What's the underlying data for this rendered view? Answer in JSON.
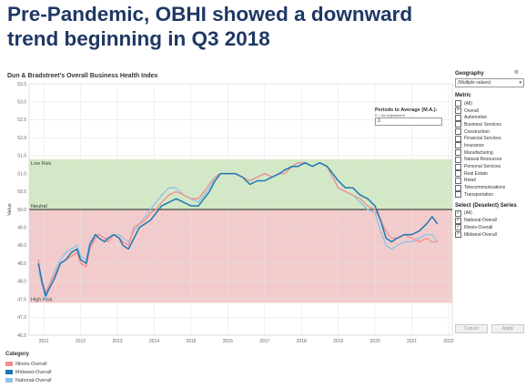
{
  "headline": "Pre-Pandemic, OBHI showed a downward trend beginning in Q3 2018",
  "chart_data": {
    "type": "line",
    "title": "Dun & Bradstreet's Overall Business Health Index",
    "xlabel": "",
    "ylabel": "Value",
    "xlim": [
      2010.6,
      2022.1
    ],
    "ylim": [
      46.5,
      53.5
    ],
    "y_ticks": [
      46.5,
      47.0,
      47.5,
      48.0,
      48.5,
      49.0,
      49.5,
      50.0,
      50.5,
      51.0,
      51.5,
      52.0,
      52.5,
      53.0,
      53.5
    ],
    "x_ticks": [
      2011,
      2012,
      2013,
      2014,
      2015,
      2016,
      2017,
      2018,
      2019,
      2020,
      2021,
      2022
    ],
    "grid": true,
    "bands": [
      {
        "label": "Low Risk",
        "from": 50.0,
        "to": 51.4,
        "color": "#d3e8c6"
      },
      {
        "label": "High Risk",
        "from": 47.4,
        "to": 50.0,
        "color": "#f2cccc"
      }
    ],
    "reference_line": {
      "label": "Neutral",
      "value": 50.0
    },
    "series": [
      {
        "name": "Illinois-Overall",
        "color": "#f28e8e",
        "x": [
          2010.85,
          2010.95,
          2011.05,
          2011.15,
          2011.3,
          2011.45,
          2011.6,
          2011.75,
          2011.9,
          2012.0,
          2012.15,
          2012.25,
          2012.4,
          2012.5,
          2012.65,
          2012.75,
          2012.9,
          2013.05,
          2013.15,
          2013.3,
          2013.45,
          2013.6,
          2013.75,
          2013.9,
          2014.05,
          2014.2,
          2014.4,
          2014.6,
          2014.8,
          2015.0,
          2015.2,
          2015.35,
          2015.5,
          2015.65,
          2015.8,
          2016.0,
          2016.2,
          2016.4,
          2016.6,
          2016.8,
          2017.0,
          2017.2,
          2017.4,
          2017.55,
          2017.75,
          2017.9,
          2018.1,
          2018.3,
          2018.5,
          2018.7,
          2018.85,
          2019.0,
          2019.2,
          2019.4,
          2019.6,
          2019.8,
          2020.0,
          2020.15,
          2020.3,
          2020.45,
          2020.6,
          2020.8,
          2021.0,
          2021.2,
          2021.4,
          2021.55,
          2021.7
        ],
        "values": [
          48.6,
          47.9,
          47.7,
          47.9,
          48.2,
          48.5,
          48.6,
          48.7,
          48.8,
          48.5,
          48.4,
          48.9,
          49.2,
          49.3,
          49.2,
          49.1,
          49.3,
          49.2,
          49.1,
          49.0,
          49.5,
          49.6,
          49.7,
          49.9,
          50.0,
          50.2,
          50.4,
          50.5,
          50.4,
          50.3,
          50.3,
          50.5,
          50.7,
          50.9,
          51.0,
          51.0,
          51.0,
          50.9,
          50.8,
          50.9,
          51.0,
          50.9,
          51.0,
          51.0,
          51.2,
          51.3,
          51.3,
          51.2,
          51.3,
          51.2,
          50.9,
          50.6,
          50.5,
          50.4,
          50.3,
          50.1,
          50.0,
          49.7,
          49.4,
          49.2,
          49.2,
          49.3,
          49.2,
          49.1,
          49.2,
          49.1,
          49.1
        ]
      },
      {
        "name": "Midwest-Overall",
        "color": "#1f77b4",
        "x": [
          2010.85,
          2010.95,
          2011.05,
          2011.15,
          2011.3,
          2011.45,
          2011.6,
          2011.75,
          2011.9,
          2012.0,
          2012.15,
          2012.25,
          2012.4,
          2012.5,
          2012.65,
          2012.75,
          2012.9,
          2013.05,
          2013.15,
          2013.3,
          2013.45,
          2013.6,
          2013.75,
          2013.9,
          2014.05,
          2014.2,
          2014.4,
          2014.6,
          2014.8,
          2015.0,
          2015.2,
          2015.35,
          2015.5,
          2015.65,
          2015.8,
          2016.0,
          2016.2,
          2016.4,
          2016.6,
          2016.8,
          2017.0,
          2017.2,
          2017.4,
          2017.55,
          2017.75,
          2017.9,
          2018.1,
          2018.3,
          2018.5,
          2018.7,
          2018.85,
          2019.0,
          2019.2,
          2019.4,
          2019.6,
          2019.8,
          2020.0,
          2020.15,
          2020.3,
          2020.45,
          2020.6,
          2020.8,
          2021.0,
          2021.2,
          2021.4,
          2021.55,
          2021.7
        ],
        "values": [
          48.5,
          48.0,
          47.6,
          47.8,
          48.1,
          48.5,
          48.6,
          48.8,
          48.9,
          48.6,
          48.5,
          49.0,
          49.3,
          49.2,
          49.1,
          49.2,
          49.3,
          49.2,
          49.0,
          48.9,
          49.2,
          49.5,
          49.6,
          49.7,
          49.9,
          50.1,
          50.2,
          50.3,
          50.2,
          50.1,
          50.1,
          50.3,
          50.5,
          50.8,
          51.0,
          51.0,
          51.0,
          50.9,
          50.7,
          50.8,
          50.8,
          50.9,
          51.0,
          51.1,
          51.2,
          51.2,
          51.3,
          51.2,
          51.3,
          51.2,
          51.0,
          50.8,
          50.6,
          50.6,
          50.4,
          50.3,
          50.1,
          49.7,
          49.2,
          49.1,
          49.2,
          49.3,
          49.3,
          49.4,
          49.6,
          49.8,
          49.6
        ]
      },
      {
        "name": "National-Overall",
        "color": "#8ec3e6",
        "x": [
          2010.85,
          2010.95,
          2011.05,
          2011.15,
          2011.3,
          2011.45,
          2011.6,
          2011.75,
          2011.9,
          2012.0,
          2012.15,
          2012.25,
          2012.4,
          2012.5,
          2012.65,
          2012.75,
          2012.9,
          2013.05,
          2013.15,
          2013.3,
          2013.45,
          2013.6,
          2013.75,
          2013.9,
          2014.05,
          2014.2,
          2014.4,
          2014.6,
          2014.8,
          2015.0,
          2015.2,
          2015.35,
          2015.5,
          2015.65,
          2015.8,
          2016.0,
          2016.2,
          2016.4,
          2016.6,
          2016.8,
          2017.0,
          2017.2,
          2017.4,
          2017.55,
          2017.75,
          2017.9,
          2018.1,
          2018.3,
          2018.5,
          2018.7,
          2018.85,
          2019.0,
          2019.2,
          2019.4,
          2019.6,
          2019.8,
          2020.0,
          2020.15,
          2020.3,
          2020.45,
          2020.6,
          2020.8,
          2021.0,
          2021.2,
          2021.4,
          2021.55,
          2021.7
        ],
        "values": [
          48.3,
          47.9,
          47.5,
          47.9,
          48.3,
          48.6,
          48.8,
          48.9,
          49.0,
          48.7,
          48.6,
          49.1,
          49.3,
          49.3,
          49.2,
          49.2,
          49.3,
          49.3,
          49.2,
          49.1,
          49.4,
          49.6,
          49.8,
          50.0,
          50.2,
          50.4,
          50.6,
          50.6,
          50.4,
          50.3,
          50.2,
          50.4,
          50.6,
          50.9,
          51.0,
          51.0,
          51.0,
          50.9,
          50.8,
          50.9,
          51.0,
          50.9,
          51.0,
          51.1,
          51.2,
          51.3,
          51.3,
          51.2,
          51.3,
          51.2,
          50.9,
          50.6,
          50.5,
          50.4,
          50.2,
          50.0,
          49.9,
          49.4,
          49.0,
          48.9,
          49.0,
          49.1,
          49.1,
          49.2,
          49.3,
          49.3,
          49.1
        ]
      }
    ]
  },
  "legend": {
    "title": "Category",
    "items": [
      {
        "label": "Illinois-Overall",
        "color": "#f28e8e"
      },
      {
        "label": "Midwest-Overall",
        "color": "#1f77b4"
      },
      {
        "label": "National-Overall",
        "color": "#8ec3e6"
      }
    ]
  },
  "periods": {
    "title": "Periods to Average (M.A.):",
    "sub": "0 = No Adjustment",
    "value": "3"
  },
  "geography": {
    "title": "Geography",
    "value": "(Multiple values)"
  },
  "metric": {
    "title": "Metric",
    "items": [
      {
        "label": "(All)",
        "checked": false
      },
      {
        "label": "Overall",
        "checked": true
      },
      {
        "label": "Automotive",
        "checked": false
      },
      {
        "label": "Business Services",
        "checked": false
      },
      {
        "label": "Construction",
        "checked": false
      },
      {
        "label": "Financial Services",
        "checked": false
      },
      {
        "label": "Insurance",
        "checked": false
      },
      {
        "label": "Manufacturing",
        "checked": false
      },
      {
        "label": "Natural Resources",
        "checked": false
      },
      {
        "label": "Personal Services",
        "checked": false
      },
      {
        "label": "Real Estate",
        "checked": false
      },
      {
        "label": "Retail",
        "checked": false
      },
      {
        "label": "Telecommunications",
        "checked": false
      },
      {
        "label": "Transportation",
        "checked": false
      }
    ]
  },
  "series_select": {
    "title": "Select (Deselect) Series",
    "items": [
      {
        "label": "(All)",
        "checked": true
      },
      {
        "label": "National-Overall",
        "checked": true
      },
      {
        "label": "Illinois-Overall",
        "checked": true
      },
      {
        "label": "Midwest-Overall",
        "checked": true
      }
    ]
  },
  "buttons": {
    "cancel": "Cancel",
    "apply": "Apply"
  }
}
